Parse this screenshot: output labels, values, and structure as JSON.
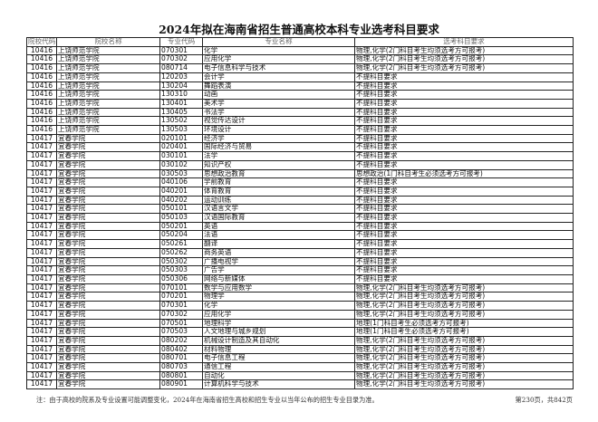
{
  "title": "2024年拟在海南省招生普通高校本科专业选考科目要求",
  "columns": [
    "院校代码",
    "院校名称",
    "专业代码",
    "专业名称",
    "选考科目要求"
  ],
  "rows": [
    [
      "10416",
      "上饶师范学院",
      "070301",
      "化学",
      "物理,化学(2门科目考生均须选考方可报考)"
    ],
    [
      "10416",
      "上饶师范学院",
      "070302",
      "应用化学",
      "物理,化学(2门科目考生均须选考方可报考)"
    ],
    [
      "10416",
      "上饶师范学院",
      "080714",
      "电子信息科学与技术",
      "物理,化学(2门科目考生均须选考方可报考)"
    ],
    [
      "10416",
      "上饶师范学院",
      "120203",
      "会计学",
      "不提科目要求"
    ],
    [
      "10416",
      "上饶师范学院",
      "130204",
      "舞蹈表演",
      "不提科目要求"
    ],
    [
      "10416",
      "上饶师范学院",
      "130310",
      "动画",
      "不提科目要求"
    ],
    [
      "10416",
      "上饶师范学院",
      "130401",
      "美术学",
      "不提科目要求"
    ],
    [
      "10416",
      "上饶师范学院",
      "130405",
      "书法学",
      "不提科目要求"
    ],
    [
      "10416",
      "上饶师范学院",
      "130502",
      "视觉传达设计",
      "不提科目要求"
    ],
    [
      "10416",
      "上饶师范学院",
      "130503",
      "环境设计",
      "不提科目要求"
    ],
    [
      "10417",
      "宜春学院",
      "020101",
      "经济学",
      "不提科目要求"
    ],
    [
      "10417",
      "宜春学院",
      "020401",
      "国际经济与贸易",
      "不提科目要求"
    ],
    [
      "10417",
      "宜春学院",
      "030101",
      "法学",
      "不提科目要求"
    ],
    [
      "10417",
      "宜春学院",
      "030102",
      "知识产权",
      "不提科目要求"
    ],
    [
      "10417",
      "宜春学院",
      "030503",
      "思想政治教育",
      "思想政治(1门科目考生必须选考方可报考)"
    ],
    [
      "10417",
      "宜春学院",
      "040106",
      "学前教育",
      "不提科目要求"
    ],
    [
      "10417",
      "宜春学院",
      "040201",
      "体育教育",
      "不提科目要求"
    ],
    [
      "10417",
      "宜春学院",
      "040202",
      "运动训练",
      "不提科目要求"
    ],
    [
      "10417",
      "宜春学院",
      "050101",
      "汉语言文学",
      "不提科目要求"
    ],
    [
      "10417",
      "宜春学院",
      "050103",
      "汉语国际教育",
      "不提科目要求"
    ],
    [
      "10417",
      "宜春学院",
      "050201",
      "英语",
      "不提科目要求"
    ],
    [
      "10417",
      "宜春学院",
      "050204",
      "法语",
      "不提科目要求"
    ],
    [
      "10417",
      "宜春学院",
      "050261",
      "翻译",
      "不提科目要求"
    ],
    [
      "10417",
      "宜春学院",
      "050262",
      "商务英语",
      "不提科目要求"
    ],
    [
      "10417",
      "宜春学院",
      "050302",
      "广播电视学",
      "不提科目要求"
    ],
    [
      "10417",
      "宜春学院",
      "050303",
      "广告学",
      "不提科目要求"
    ],
    [
      "10417",
      "宜春学院",
      "050306",
      "网络与新媒体",
      "不提科目要求"
    ],
    [
      "10417",
      "宜春学院",
      "070101",
      "数学与应用数学",
      "物理,化学(2门科目考生均须选考方可报考)"
    ],
    [
      "10417",
      "宜春学院",
      "070201",
      "物理学",
      "物理,化学(2门科目考生均须选考方可报考)"
    ],
    [
      "10417",
      "宜春学院",
      "070301",
      "化学",
      "物理,化学(2门科目考生均须选考方可报考)"
    ],
    [
      "10417",
      "宜春学院",
      "070302",
      "应用化学",
      "物理,化学(2门科目考生均须选考方可报考)"
    ],
    [
      "10417",
      "宜春学院",
      "070501",
      "地理科学",
      "地理(1门科目考生必须选考方可报考)"
    ],
    [
      "10417",
      "宜春学院",
      "070503",
      "人文地理与城乡规划",
      "地理(1门科目考生必须选考方可报考)"
    ],
    [
      "10417",
      "宜春学院",
      "080202",
      "机械设计制造及其自动化",
      "物理,化学(2门科目考生均须选考方可报考)"
    ],
    [
      "10417",
      "宜春学院",
      "080402",
      "材料物理",
      "物理,化学(2门科目考生均须选考方可报考)"
    ],
    [
      "10417",
      "宜春学院",
      "080701",
      "电子信息工程",
      "物理,化学(2门科目考生均须选考方可报考)"
    ],
    [
      "10417",
      "宜春学院",
      "080703",
      "通信工程",
      "物理,化学(2门科目考生均须选考方可报考)"
    ],
    [
      "10417",
      "宜春学院",
      "080801",
      "自动化",
      "物理,化学(2门科目考生均须选考方可报考)"
    ],
    [
      "10417",
      "宜春学院",
      "080901",
      "计算机科学与技术",
      "物理,化学(2门科目考生均须选考方可报考)"
    ]
  ],
  "footer_note": "注：由于高校的院系及专业设置可能调整变化，2024年在海南省招生高校和招生专业以当年公布的招生专业目录为准。",
  "page_info": "第230页，共842页"
}
